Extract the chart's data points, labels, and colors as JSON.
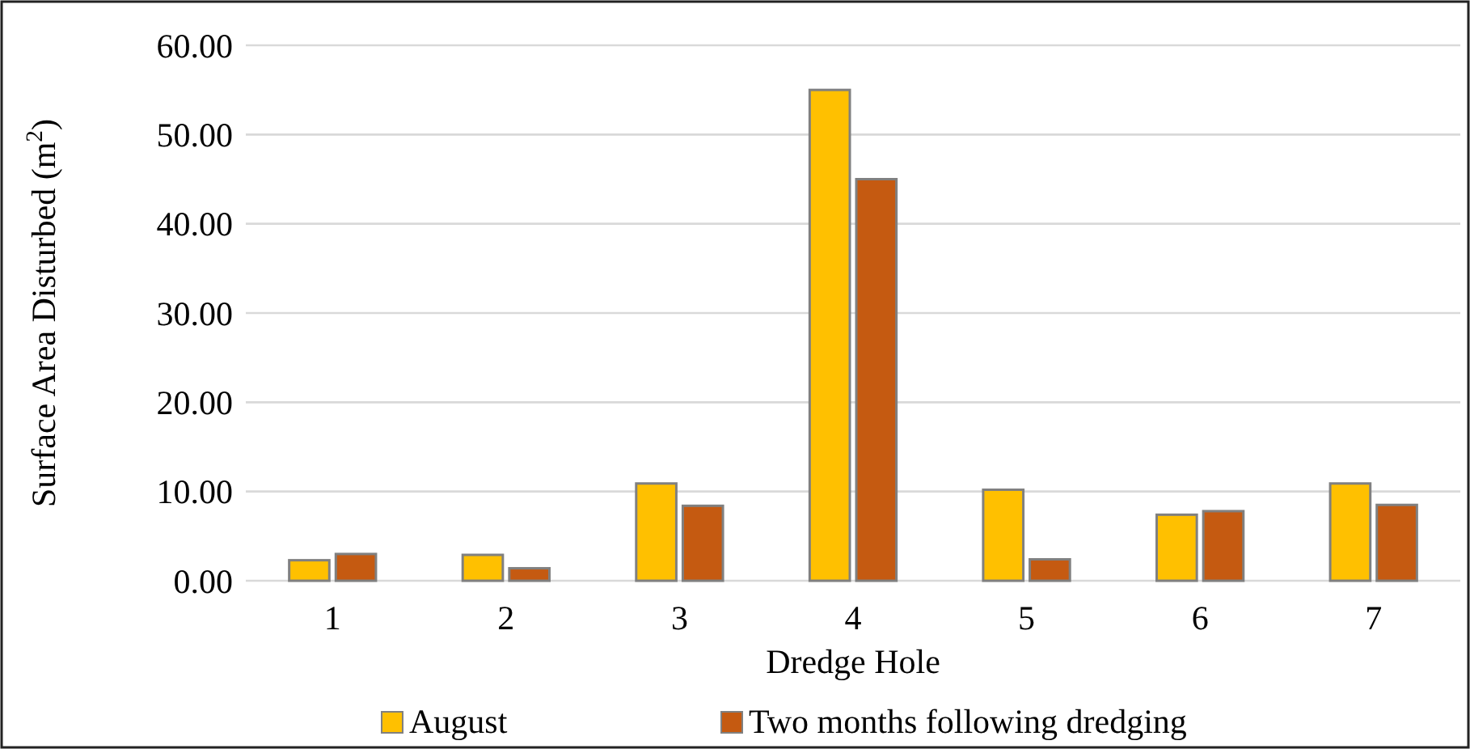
{
  "chart_data": {
    "type": "bar",
    "xlabel": "Dredge Hole",
    "ylabel": "Surface Area Disturbed (m$^{2}$)",
    "categories": [
      "1",
      "2",
      "3",
      "4",
      "5",
      "6",
      "7"
    ],
    "series": [
      {
        "name": "August",
        "color": "#ffc000",
        "values": [
          2.3,
          2.9,
          10.9,
          55,
          10.2,
          7.4,
          10.9
        ]
      },
      {
        "name": "Two months following dredging",
        "color": "#c55a11",
        "values": [
          3.0,
          1.4,
          8.4,
          45,
          2.4,
          7.8,
          8.5
        ]
      }
    ],
    "ylim": [
      0,
      60
    ],
    "yticks": [
      {
        "value": 0,
        "label": "0.00"
      },
      {
        "value": 10,
        "label": "10.00"
      },
      {
        "value": 20,
        "label": "20.00"
      },
      {
        "value": 30,
        "label": "30.00"
      },
      {
        "value": 40,
        "label": "40.00"
      },
      {
        "value": 50,
        "label": "50.00"
      },
      {
        "value": 60,
        "label": "60.00"
      }
    ],
    "grid": "y",
    "legend": "bottom"
  }
}
